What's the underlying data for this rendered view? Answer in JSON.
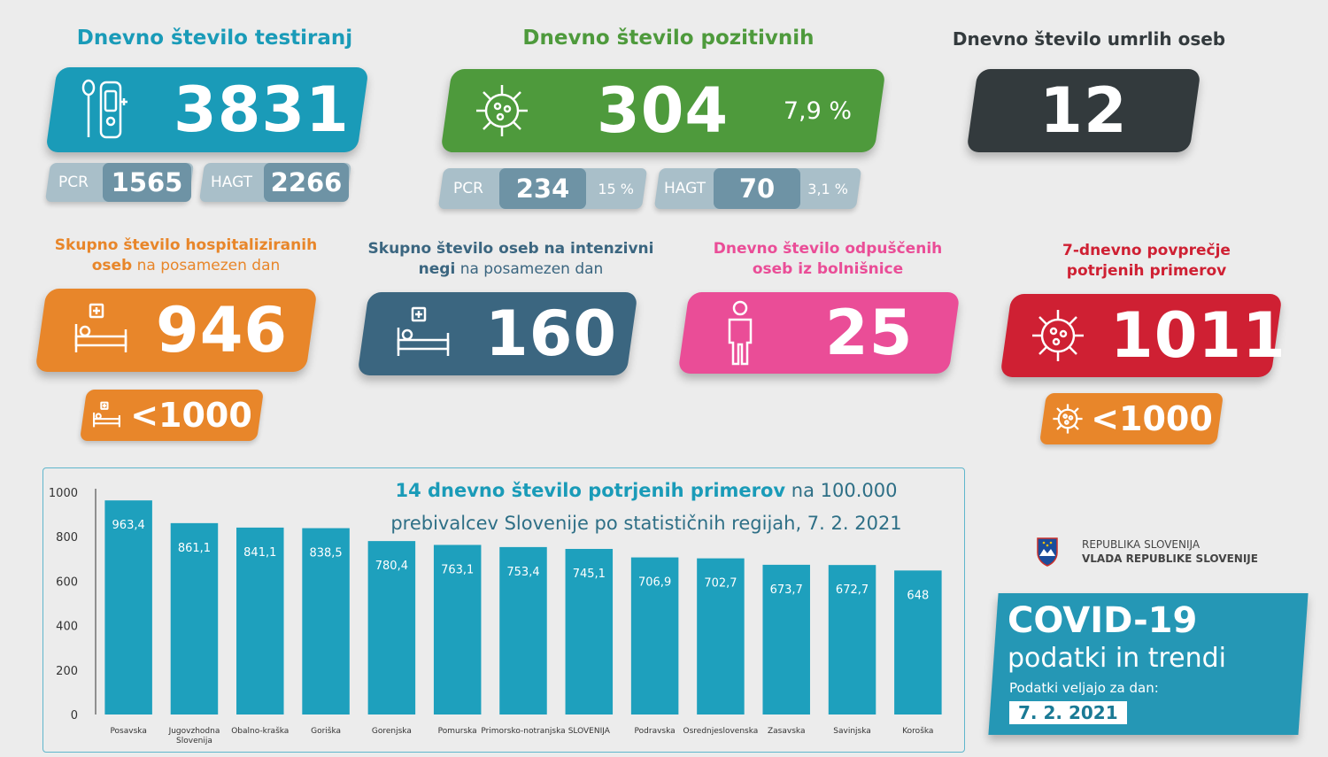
{
  "tests": {
    "title": "Dnevno število testiranj",
    "value": "3831",
    "pcr_label": "PCR",
    "pcr_value": "1565",
    "hagt_label": "HAGT",
    "hagt_value": "2266"
  },
  "positive": {
    "title": "Dnevno število pozitivnih",
    "value": "304",
    "percent": "7,9 %",
    "pcr_label": "PCR",
    "pcr_value": "234",
    "pcr_percent": "15 %",
    "hagt_label": "HAGT",
    "hagt_value": "70",
    "hagt_percent": "3,1 %"
  },
  "deaths": {
    "title": "Dnevno število umrlih oseb",
    "value": "12"
  },
  "hospital": {
    "title_bold_1": "Skupno število hospitaliziranih",
    "title_bold_2": "oseb",
    "title_light": " na posamezen dan",
    "value": "946",
    "threshold": "<1000"
  },
  "icu": {
    "title_bold_1": "Skupno število oseb na intenzivni",
    "title_bold_2": "negi",
    "title_light": " na posamezen dan",
    "value": "160"
  },
  "discharged": {
    "title_1": "Dnevno število odpuščenih",
    "title_2": "oseb iz bolnišnice",
    "value": "25"
  },
  "avg7": {
    "title_1": "7-dnevno povprečje",
    "title_2": "potrjenih primerov",
    "value": "1011",
    "threshold": "<1000"
  },
  "colors": {
    "blue": "#1a9bb8",
    "green": "#4e9a3c",
    "dark": "#333a3d",
    "orange": "#e8862a",
    "slate": "#3b6680",
    "pink": "#ea4d97",
    "red": "#cf2033",
    "pill_grey": "#a9bfc9",
    "pill_dark": "#6e93a5",
    "bar": "#1ea0bd"
  },
  "chart_title": {
    "bold": "14 dnevno število potrjenih primerov",
    "rest_1": " na 100.000",
    "line_2": "prebivalcev Slovenije po statističnih regijah, 7. 2. 2021"
  },
  "chart_data": {
    "type": "bar",
    "categories": [
      "Posavska",
      "Jugovzhodna Slovenija",
      "Obalno-kraška",
      "Goriška",
      "Gorenjska",
      "Pomurska",
      "Primorsko-notranjska",
      "SLOVENIJA",
      "Podravska",
      "Osrednjeslovenska",
      "Zasavska",
      "Savinjska",
      "Koroška"
    ],
    "values": [
      963.4,
      861.1,
      841.1,
      838.5,
      780.4,
      763.1,
      753.4,
      745.1,
      706.9,
      702.7,
      673.7,
      672.7,
      648
    ],
    "value_labels": [
      "963,4",
      "861,1",
      "841,1",
      "838,5",
      "780,4",
      "763,1",
      "753,4",
      "745,1",
      "706,9",
      "702,7",
      "673,7",
      "672,7",
      "648"
    ],
    "ylim": [
      0,
      1000
    ],
    "yticks": [
      "0",
      "200",
      "400",
      "600",
      "800",
      "1000"
    ],
    "grid": false
  },
  "gov": {
    "line1": "REPUBLIKA SLOVENIJA",
    "line2": "VLADA REPUBLIKE SLOVENIJE"
  },
  "brand": {
    "title": "COVID-19",
    "subtitle": "podatki in trendi",
    "valid_label": "Podatki veljajo za dan:",
    "date": "7. 2. 2021"
  }
}
